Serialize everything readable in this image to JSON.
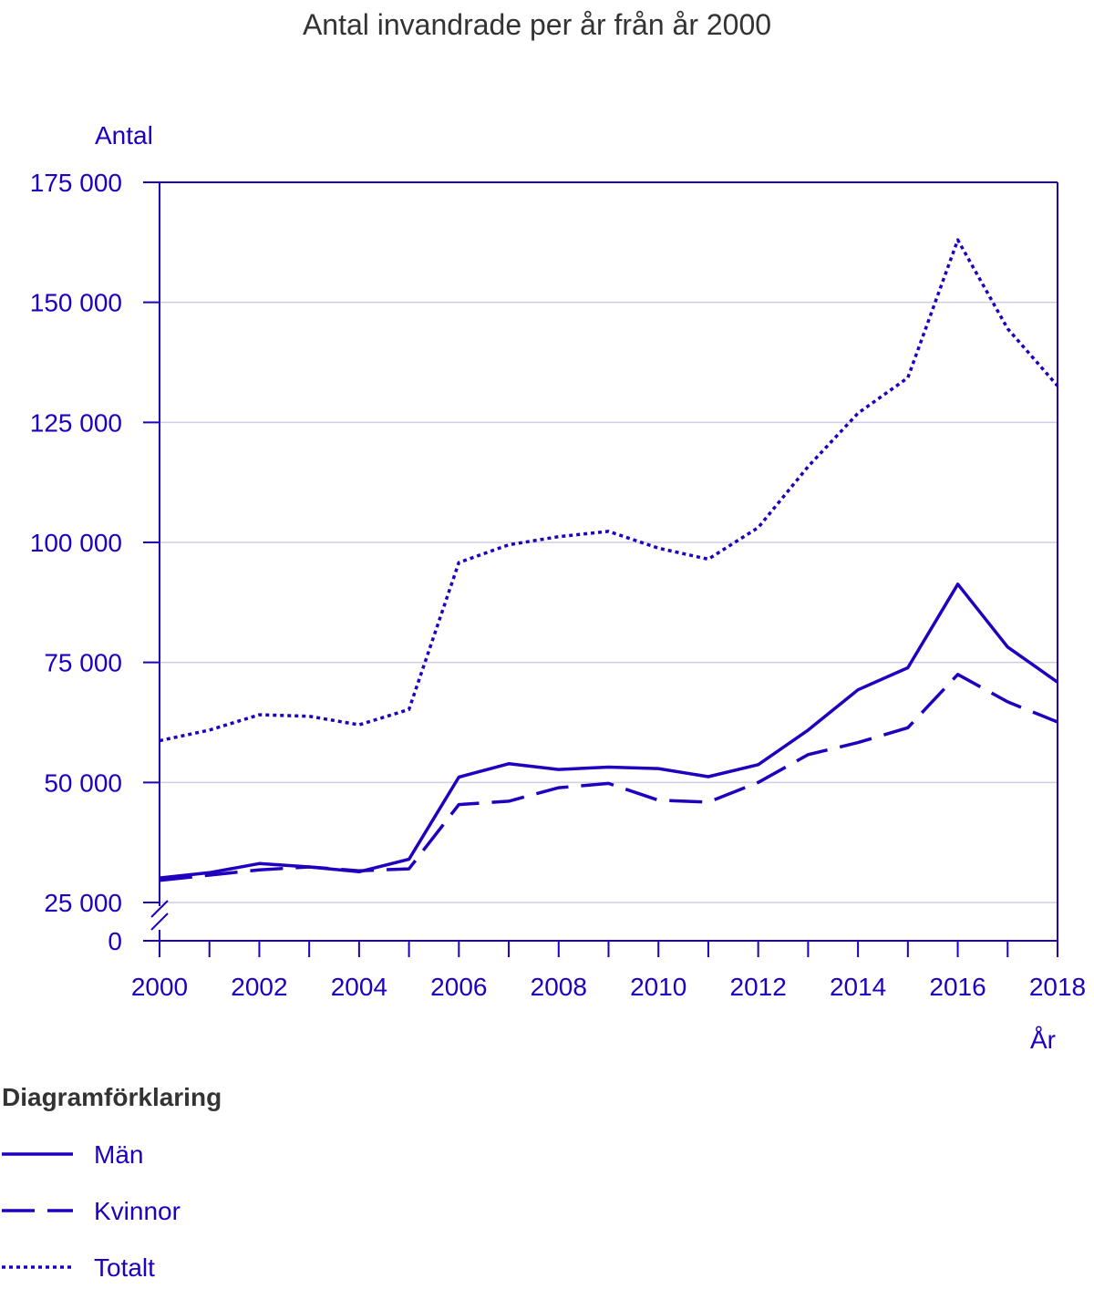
{
  "chart_data": {
    "type": "line",
    "title": "Antal invandrade per år från år 2000",
    "ylabel": "Antal",
    "xlabel": "År",
    "ylim": [
      0,
      175000
    ],
    "y_axis_break": true,
    "y_ticks": [
      0,
      25000,
      50000,
      75000,
      100000,
      125000,
      150000,
      175000
    ],
    "y_tick_labels": [
      "0",
      "25 000",
      "50 000",
      "75 000",
      "100 000",
      "125 000",
      "150 000",
      "175 000"
    ],
    "x": [
      2000,
      2001,
      2002,
      2003,
      2004,
      2005,
      2006,
      2007,
      2008,
      2009,
      2010,
      2011,
      2012,
      2013,
      2014,
      2015,
      2016,
      2017,
      2018
    ],
    "x_tick_labels": [
      "2000",
      "2002",
      "2004",
      "2006",
      "2008",
      "2010",
      "2012",
      "2014",
      "2016",
      "2018"
    ],
    "grid": true,
    "legend_title": "Diagramförklaring",
    "legend_position": "bottom-left",
    "series": [
      {
        "name": "Män",
        "style": "solid",
        "values": [
          30100,
          31200,
          33100,
          32400,
          31400,
          34000,
          51100,
          53900,
          52700,
          53200,
          52900,
          51200,
          53700,
          60900,
          69300,
          73900,
          91300,
          78200,
          70900
        ]
      },
      {
        "name": "Kvinnor",
        "style": "dashed",
        "values": [
          29600,
          30700,
          31800,
          32400,
          31600,
          32000,
          45400,
          46100,
          48900,
          49800,
          46300,
          45900,
          50000,
          55800,
          58300,
          61400,
          72500,
          66800,
          62600
        ]
      },
      {
        "name": "Totalt",
        "style": "dotted",
        "values": [
          58700,
          60900,
          64100,
          63800,
          62000,
          65200,
          95800,
          99500,
          101200,
          102300,
          98800,
          96500,
          103100,
          115800,
          126900,
          134300,
          163000,
          144500,
          132600
        ]
      }
    ]
  },
  "colors": {
    "accent": "#1e00be",
    "title": "#333333",
    "grid": "#cfcde6"
  }
}
